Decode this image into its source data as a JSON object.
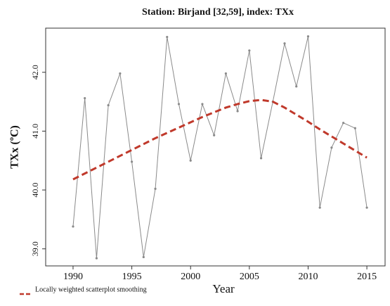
{
  "chart_data": {
    "type": "line",
    "title": "Station: Birjand [32,59], index: TXx",
    "x_label": "Year",
    "y_label": "TXx (ºC)",
    "x": [
      1990,
      1991,
      1992,
      1993,
      1994,
      1995,
      1996,
      1997,
      1998,
      1999,
      2000,
      2001,
      2002,
      2003,
      2004,
      2005,
      2006,
      2007,
      2008,
      2009,
      2010,
      2011,
      2012,
      2013,
      2014,
      2015
    ],
    "series": [
      {
        "color": "#8a8a8a",
        "style": "solid",
        "markers": true,
        "values": [
          39.38,
          41.56,
          38.84,
          41.44,
          41.98,
          40.48,
          38.86,
          40.02,
          42.6,
          41.46,
          40.5,
          41.46,
          40.93,
          41.98,
          41.34,
          42.37,
          40.54,
          41.5,
          42.49,
          41.76,
          42.61,
          39.7,
          40.72,
          41.14,
          41.05,
          39.7
        ]
      },
      {
        "name": "Locally weighted scatterplot smoothing",
        "color": "#c0392b",
        "style": "dashed",
        "markers": false,
        "values": [
          40.18,
          40.28,
          40.38,
          40.48,
          40.58,
          40.68,
          40.78,
          40.88,
          40.97,
          41.06,
          41.15,
          41.24,
          41.32,
          41.4,
          41.46,
          41.51,
          41.53,
          41.5,
          41.4,
          41.28,
          41.16,
          41.03,
          40.91,
          40.79,
          40.67,
          40.55
        ]
      }
    ],
    "xlim": [
      1987.67,
      2016.55
    ],
    "ylim": [
      38.71,
      42.75
    ],
    "xticks": [
      1990,
      1995,
      2000,
      2005,
      2010,
      2015
    ],
    "yticks": [
      {
        "value": 39,
        "label": "39.0"
      },
      {
        "value": 40,
        "label": "40.0"
      },
      {
        "value": 41,
        "label": "41.0"
      },
      {
        "value": 42,
        "label": "42.0"
      }
    ],
    "legend": "bottom-left"
  }
}
